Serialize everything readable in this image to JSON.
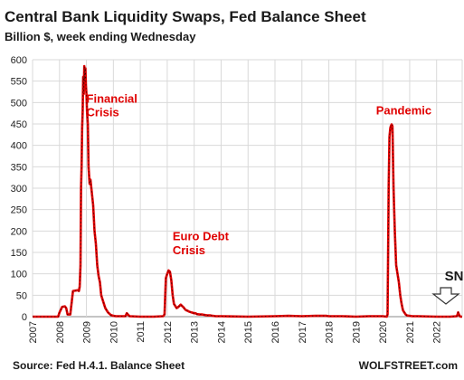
{
  "chart_data": {
    "type": "line",
    "title": "Central Bank Liquidity Swaps, Fed Balance Sheet",
    "subtitle": "Billion $, week ending Wednesday",
    "xlabel": "",
    "ylabel": "",
    "xlim": [
      2007.0,
      2022.95
    ],
    "ylim": [
      0,
      600
    ],
    "y_ticks": [
      0,
      50,
      100,
      150,
      200,
      250,
      300,
      350,
      400,
      450,
      500,
      550,
      600
    ],
    "x_ticks": [
      "2007",
      "2008",
      "2009",
      "2010",
      "2011",
      "2012",
      "2013",
      "2014",
      "2015",
      "2016",
      "2017",
      "2018",
      "2019",
      "2020",
      "2021",
      "2022"
    ],
    "grid": true,
    "series": [
      {
        "color": "#e00000",
        "x": [
          2007.0,
          2007.95,
          2008.0,
          2008.1,
          2008.2,
          2008.25,
          2008.3,
          2008.4,
          2008.5,
          2008.7,
          2008.72,
          2008.75,
          2008.78,
          2008.8,
          2008.82,
          2008.84,
          2008.86,
          2008.88,
          2008.9,
          2008.92,
          2008.94,
          2008.96,
          2008.98,
          2009.0,
          2009.02,
          2009.05,
          2009.08,
          2009.12,
          2009.15,
          2009.2,
          2009.25,
          2009.3,
          2009.35,
          2009.4,
          2009.45,
          2009.5,
          2009.55,
          2009.6,
          2009.65,
          2009.7,
          2009.8,
          2009.9,
          2010.0,
          2010.1,
          2010.3,
          2010.45,
          2010.5,
          2010.6,
          2011.0,
          2011.5,
          2011.85,
          2011.9,
          2011.95,
          2012.0,
          2012.05,
          2012.1,
          2012.15,
          2012.2,
          2012.25,
          2012.3,
          2012.35,
          2012.4,
          2012.45,
          2012.5,
          2012.55,
          2012.6,
          2012.65,
          2012.7,
          2012.75,
          2012.8,
          2012.9,
          2013.0,
          2013.05,
          2013.1,
          2013.2,
          2013.3,
          2013.4,
          2013.5,
          2013.6,
          2013.7,
          2013.8,
          2014.0,
          2015.0,
          2016.0,
          2016.5,
          2017.0,
          2017.5,
          2017.9,
          2018.0,
          2018.5,
          2019.0,
          2019.5,
          2020.0,
          2020.15,
          2020.18,
          2020.2,
          2020.22,
          2020.25,
          2020.28,
          2020.3,
          2020.33,
          2020.36,
          2020.4,
          2020.45,
          2020.5,
          2020.55,
          2020.6,
          2020.65,
          2020.7,
          2020.75,
          2020.8,
          2020.85,
          2020.9,
          2021.0,
          2021.1,
          2021.3,
          2022.0,
          2022.5,
          2022.75,
          2022.78,
          2022.8,
          2022.83,
          2022.86,
          2022.9,
          2022.95
        ],
        "y": [
          0,
          0,
          10,
          23,
          24,
          20,
          5,
          5,
          60,
          62,
          60,
          70,
          120,
          300,
          350,
          440,
          480,
          560,
          520,
          585,
          550,
          580,
          540,
          520,
          480,
          450,
          350,
          310,
          320,
          290,
          260,
          200,
          170,
          120,
          95,
          80,
          50,
          40,
          30,
          20,
          10,
          4,
          2,
          1,
          1,
          1,
          8,
          1,
          0,
          0,
          1,
          5,
          90,
          100,
          108,
          105,
          85,
          50,
          30,
          25,
          20,
          22,
          25,
          28,
          25,
          22,
          18,
          15,
          14,
          12,
          10,
          8,
          8,
          6,
          5,
          5,
          4,
          3,
          3,
          2,
          1,
          1,
          0,
          1,
          2,
          1,
          2,
          2,
          1,
          1,
          0,
          1,
          1,
          0,
          5,
          150,
          300,
          420,
          440,
          445,
          449,
          445,
          300,
          200,
          120,
          100,
          80,
          50,
          30,
          15,
          10,
          5,
          3,
          2,
          1,
          1,
          0,
          0,
          1,
          5,
          10,
          5,
          1,
          0,
          0
        ]
      }
    ],
    "annotations": [
      {
        "text": "Financial",
        "x": 2009.0,
        "y": 500
      },
      {
        "text": "Crisis",
        "x": 2009.0,
        "y": 468
      },
      {
        "text": "Euro Debt",
        "x": 2012.2,
        "y": 178
      },
      {
        "text": "Crisis",
        "x": 2012.2,
        "y": 146
      },
      {
        "text": "Pandemic",
        "x": 2019.75,
        "y": 472
      },
      {
        "text": "SNB",
        "x": 2022.3,
        "y": 85
      }
    ]
  },
  "footer": {
    "source": "Source: Fed H.4.1. Balance Sheet",
    "brand": "WOLFSTREET.com"
  }
}
